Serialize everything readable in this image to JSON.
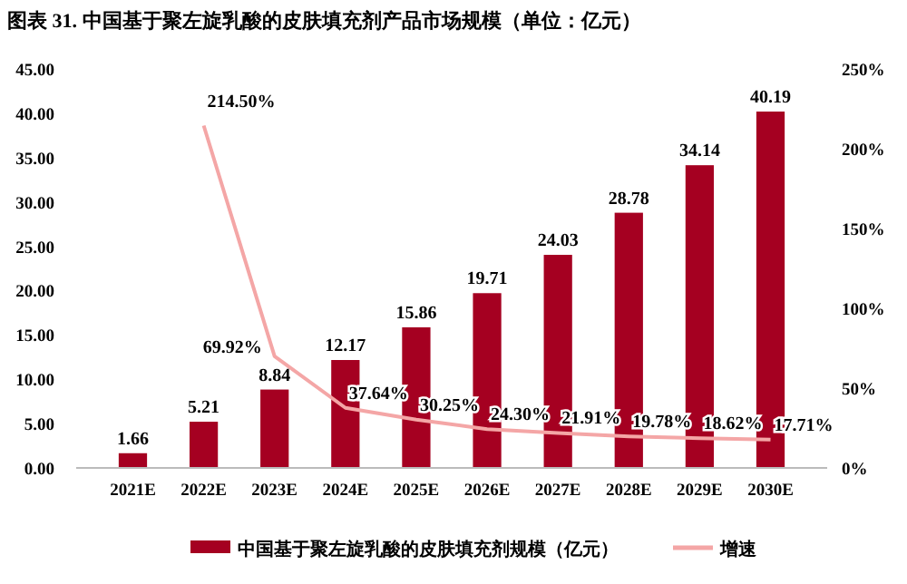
{
  "chart_data": {
    "type": "bar",
    "title": "图表 31. 中国基于聚左旋乳酸的皮肤填充剂产品市场规模（单位：亿元）",
    "categories": [
      "2021E",
      "2022E",
      "2023E",
      "2024E",
      "2025E",
      "2026E",
      "2027E",
      "2028E",
      "2029E",
      "2030E"
    ],
    "series": [
      {
        "name": "中国基于聚左旋乳酸的皮肤填充剂规模（亿元）",
        "color": "#a50021",
        "values": [
          1.66,
          5.21,
          8.84,
          12.17,
          15.86,
          19.71,
          24.03,
          28.78,
          34.14,
          40.19
        ],
        "value_labels": [
          "1.66",
          "5.21",
          "8.84",
          "12.17",
          "15.86",
          "19.71",
          "24.03",
          "28.78",
          "34.14",
          "40.19"
        ]
      },
      {
        "name": "增速",
        "type": "line",
        "axis": "y2",
        "color": "#f4a6a6",
        "values": [
          null,
          214.5,
          69.92,
          37.64,
          30.25,
          24.3,
          21.91,
          19.78,
          18.62,
          17.71
        ],
        "value_labels": [
          null,
          "214.50%",
          "69.92%",
          "37.64%",
          "30.25%",
          "24.30%",
          "21.91%",
          "19.78%",
          "18.62%",
          "17.71%"
        ]
      }
    ],
    "ylim": [
      0,
      45
    ],
    "yticks": [
      {
        "value": 0,
        "label": "0.00"
      },
      {
        "value": 5,
        "label": "5.00"
      },
      {
        "value": 10,
        "label": "10.00"
      },
      {
        "value": 15,
        "label": "15.00"
      },
      {
        "value": 20,
        "label": "20.00"
      },
      {
        "value": 25,
        "label": "25.00"
      },
      {
        "value": 30,
        "label": "30.00"
      },
      {
        "value": 35,
        "label": "35.00"
      },
      {
        "value": 40,
        "label": "40.00"
      },
      {
        "value": 45,
        "label": "45.00"
      }
    ],
    "y2lim": [
      0,
      250
    ],
    "y2ticks": [
      {
        "value": 0,
        "label": "0%"
      },
      {
        "value": 50,
        "label": "50%"
      },
      {
        "value": 100,
        "label": "100%"
      },
      {
        "value": 150,
        "label": "150%"
      },
      {
        "value": 200,
        "label": "200%"
      },
      {
        "value": 250,
        "label": "250%"
      }
    ],
    "legend": "bottom",
    "grid": false,
    "marker": "none"
  }
}
